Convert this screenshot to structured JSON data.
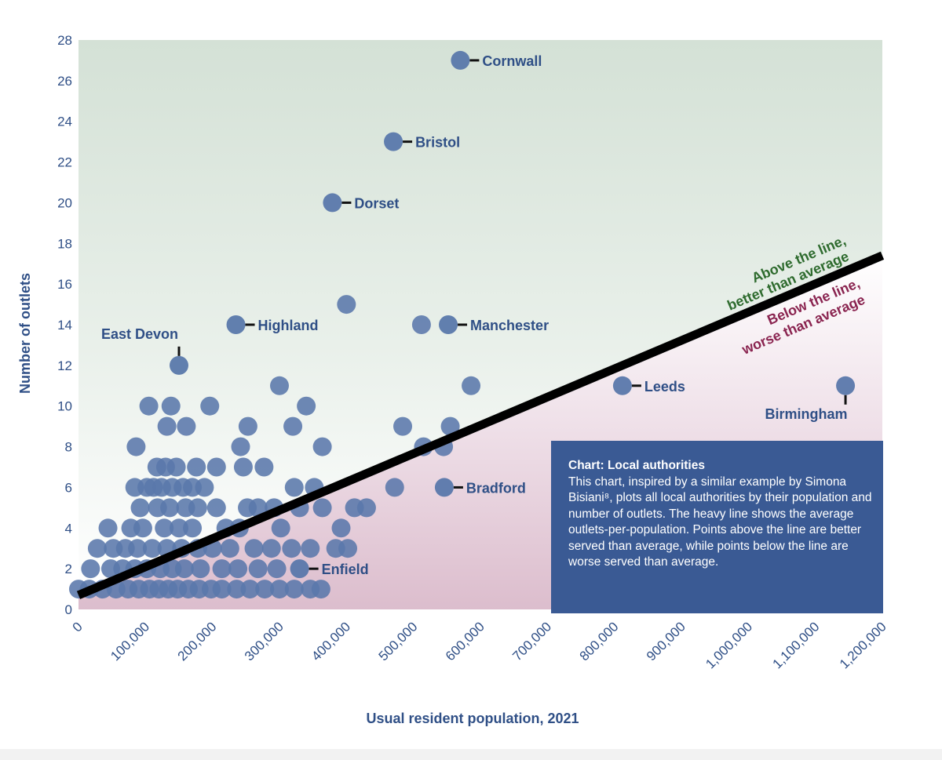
{
  "chart_data": {
    "type": "scatter",
    "xlabel": "Usual resident population, 2021",
    "ylabel": "Number of outlets",
    "xlim": [
      0,
      1200000
    ],
    "ylim": [
      0,
      28
    ],
    "x_ticks": [
      "0",
      "100,000",
      "200,000",
      "300,000",
      "400,000",
      "500,000",
      "600,000",
      "700,000",
      "800,000",
      "900,000",
      "1,000,000",
      "1,100,000",
      "1,200,000"
    ],
    "y_ticks": [
      "0",
      "2",
      "4",
      "6",
      "8",
      "10",
      "12",
      "14",
      "16",
      "18",
      "20",
      "22",
      "24",
      "26",
      "28"
    ],
    "average_line": {
      "x": [
        0,
        1200000
      ],
      "y": [
        0.7,
        17.4
      ]
    },
    "region_labels": {
      "above": [
        "Above the line,",
        "better than average"
      ],
      "below": [
        "Below the line,",
        "worse than average"
      ]
    },
    "labeled_points": [
      {
        "name": "Cornwall",
        "x": 570000,
        "y": 27
      },
      {
        "name": "Bristol",
        "x": 470000,
        "y": 23
      },
      {
        "name": "Dorset",
        "x": 379000,
        "y": 20
      },
      {
        "name": "Highland",
        "x": 235000,
        "y": 14
      },
      {
        "name": "Manchester",
        "x": 552000,
        "y": 14
      },
      {
        "name": "East Devon",
        "x": 150000,
        "y": 12
      },
      {
        "name": "Leeds",
        "x": 812000,
        "y": 11
      },
      {
        "name": "Birmingham",
        "x": 1145000,
        "y": 11
      },
      {
        "name": "Bradford",
        "x": 546000,
        "y": 6
      },
      {
        "name": "Enfield",
        "x": 330000,
        "y": 2
      }
    ],
    "points": [
      {
        "x": 400000,
        "y": 15
      },
      {
        "x": 512000,
        "y": 14
      },
      {
        "x": 586000,
        "y": 11
      },
      {
        "x": 300000,
        "y": 11
      },
      {
        "x": 105000,
        "y": 10
      },
      {
        "x": 138000,
        "y": 10
      },
      {
        "x": 196000,
        "y": 10
      },
      {
        "x": 340000,
        "y": 10
      },
      {
        "x": 132000,
        "y": 9
      },
      {
        "x": 161000,
        "y": 9
      },
      {
        "x": 253000,
        "y": 9
      },
      {
        "x": 320000,
        "y": 9
      },
      {
        "x": 484000,
        "y": 9
      },
      {
        "x": 555000,
        "y": 9
      },
      {
        "x": 86000,
        "y": 8
      },
      {
        "x": 242000,
        "y": 8
      },
      {
        "x": 364000,
        "y": 8
      },
      {
        "x": 515000,
        "y": 8
      },
      {
        "x": 545000,
        "y": 8
      },
      {
        "x": 117000,
        "y": 7
      },
      {
        "x": 130000,
        "y": 7
      },
      {
        "x": 146000,
        "y": 7
      },
      {
        "x": 176000,
        "y": 7
      },
      {
        "x": 206000,
        "y": 7
      },
      {
        "x": 246000,
        "y": 7
      },
      {
        "x": 277000,
        "y": 7
      },
      {
        "x": 84000,
        "y": 6
      },
      {
        "x": 102000,
        "y": 6
      },
      {
        "x": 112000,
        "y": 6
      },
      {
        "x": 124000,
        "y": 6
      },
      {
        "x": 140000,
        "y": 6
      },
      {
        "x": 156000,
        "y": 6
      },
      {
        "x": 170000,
        "y": 6
      },
      {
        "x": 188000,
        "y": 6
      },
      {
        "x": 322000,
        "y": 6
      },
      {
        "x": 352000,
        "y": 6
      },
      {
        "x": 472000,
        "y": 6
      },
      {
        "x": 92000,
        "y": 5
      },
      {
        "x": 118000,
        "y": 5
      },
      {
        "x": 136000,
        "y": 5
      },
      {
        "x": 160000,
        "y": 5
      },
      {
        "x": 178000,
        "y": 5
      },
      {
        "x": 206000,
        "y": 5
      },
      {
        "x": 252000,
        "y": 5
      },
      {
        "x": 268000,
        "y": 5
      },
      {
        "x": 292000,
        "y": 5
      },
      {
        "x": 330000,
        "y": 5
      },
      {
        "x": 364000,
        "y": 5
      },
      {
        "x": 412000,
        "y": 5
      },
      {
        "x": 430000,
        "y": 5
      },
      {
        "x": 44000,
        "y": 4
      },
      {
        "x": 78000,
        "y": 4
      },
      {
        "x": 96000,
        "y": 4
      },
      {
        "x": 128000,
        "y": 4
      },
      {
        "x": 150000,
        "y": 4
      },
      {
        "x": 170000,
        "y": 4
      },
      {
        "x": 220000,
        "y": 4
      },
      {
        "x": 240000,
        "y": 4
      },
      {
        "x": 302000,
        "y": 4
      },
      {
        "x": 392000,
        "y": 4
      },
      {
        "x": 28000,
        "y": 3
      },
      {
        "x": 52000,
        "y": 3
      },
      {
        "x": 70000,
        "y": 3
      },
      {
        "x": 88000,
        "y": 3
      },
      {
        "x": 110000,
        "y": 3
      },
      {
        "x": 132000,
        "y": 3
      },
      {
        "x": 154000,
        "y": 3
      },
      {
        "x": 178000,
        "y": 3
      },
      {
        "x": 200000,
        "y": 3
      },
      {
        "x": 226000,
        "y": 3
      },
      {
        "x": 262000,
        "y": 3
      },
      {
        "x": 288000,
        "y": 3
      },
      {
        "x": 318000,
        "y": 3
      },
      {
        "x": 346000,
        "y": 3
      },
      {
        "x": 384000,
        "y": 3
      },
      {
        "x": 402000,
        "y": 3
      },
      {
        "x": 18000,
        "y": 2
      },
      {
        "x": 48000,
        "y": 2
      },
      {
        "x": 66000,
        "y": 2
      },
      {
        "x": 84000,
        "y": 2
      },
      {
        "x": 102000,
        "y": 2
      },
      {
        "x": 122000,
        "y": 2
      },
      {
        "x": 140000,
        "y": 2
      },
      {
        "x": 158000,
        "y": 2
      },
      {
        "x": 182000,
        "y": 2
      },
      {
        "x": 214000,
        "y": 2
      },
      {
        "x": 238000,
        "y": 2
      },
      {
        "x": 268000,
        "y": 2
      },
      {
        "x": 296000,
        "y": 2
      },
      {
        "x": 0,
        "y": 1
      },
      {
        "x": 16000,
        "y": 1
      },
      {
        "x": 36000,
        "y": 1
      },
      {
        "x": 56000,
        "y": 1
      },
      {
        "x": 74000,
        "y": 1
      },
      {
        "x": 90000,
        "y": 1
      },
      {
        "x": 106000,
        "y": 1
      },
      {
        "x": 120000,
        "y": 1
      },
      {
        "x": 134000,
        "y": 1
      },
      {
        "x": 148000,
        "y": 1
      },
      {
        "x": 164000,
        "y": 1
      },
      {
        "x": 180000,
        "y": 1
      },
      {
        "x": 198000,
        "y": 1
      },
      {
        "x": 214000,
        "y": 1
      },
      {
        "x": 236000,
        "y": 1
      },
      {
        "x": 256000,
        "y": 1
      },
      {
        "x": 278000,
        "y": 1
      },
      {
        "x": 300000,
        "y": 1
      },
      {
        "x": 322000,
        "y": 1
      },
      {
        "x": 346000,
        "y": 1
      },
      {
        "x": 362000,
        "y": 1
      }
    ]
  },
  "info_box": {
    "title": "Chart: Local authorities",
    "body": "This chart, inspired by a similar example by Simona Bisiani⁸, plots all local authorities by their population and number of outlets. The heavy line shows the average outlets-per-population. Points above the line are better served than average, while points below the line are worse served than average."
  },
  "colors": {
    "point": "#5a78ab",
    "text": "#2f4f86",
    "line": "#000000",
    "above_fill": "#d6e3d8",
    "below_fill": "#dfc3d2",
    "box": "#3a5a94",
    "above_label": "#2e6b2e",
    "below_label": "#8a2450"
  }
}
